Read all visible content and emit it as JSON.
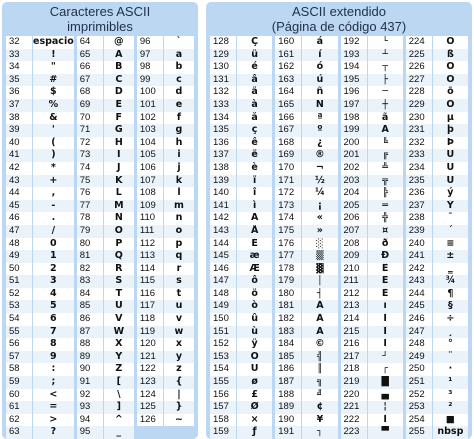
{
  "left_title": [
    "Caracteres ASCII",
    "imprimibles"
  ],
  "right_title": [
    "ASCII extendido",
    "(Página de código 437)"
  ],
  "left_cols": [
    [
      [
        "32",
        "espacio"
      ],
      [
        "33",
        "!"
      ],
      [
        "34",
        "\""
      ],
      [
        "35",
        "#"
      ],
      [
        "36",
        "$"
      ],
      [
        "37",
        "%"
      ],
      [
        "38",
        "&"
      ],
      [
        "39",
        "'"
      ],
      [
        "40",
        "("
      ],
      [
        "41",
        ")"
      ],
      [
        "42",
        "*"
      ],
      [
        "43",
        "+"
      ],
      [
        "44",
        ","
      ],
      [
        "45",
        "-"
      ],
      [
        "46",
        "."
      ],
      [
        "47",
        "/"
      ],
      [
        "48",
        "0"
      ],
      [
        "49",
        "1"
      ],
      [
        "50",
        "2"
      ],
      [
        "51",
        "3"
      ],
      [
        "52",
        "4"
      ],
      [
        "53",
        "5"
      ],
      [
        "54",
        "6"
      ],
      [
        "55",
        "7"
      ],
      [
        "56",
        "8"
      ],
      [
        "57",
        "9"
      ],
      [
        "58",
        ":"
      ],
      [
        "59",
        ";"
      ],
      [
        "60",
        "<"
      ],
      [
        "61",
        "="
      ],
      [
        "62",
        ">"
      ],
      [
        "63",
        "?"
      ]
    ],
    [
      [
        "64",
        "@"
      ],
      [
        "65",
        "A"
      ],
      [
        "66",
        "B"
      ],
      [
        "67",
        "C"
      ],
      [
        "68",
        "D"
      ],
      [
        "69",
        "E"
      ],
      [
        "70",
        "F"
      ],
      [
        "71",
        "G"
      ],
      [
        "72",
        "H"
      ],
      [
        "73",
        "I"
      ],
      [
        "74",
        "J"
      ],
      [
        "75",
        "K"
      ],
      [
        "76",
        "L"
      ],
      [
        "77",
        "M"
      ],
      [
        "78",
        "N"
      ],
      [
        "79",
        "O"
      ],
      [
        "80",
        "P"
      ],
      [
        "81",
        "Q"
      ],
      [
        "82",
        "R"
      ],
      [
        "83",
        "S"
      ],
      [
        "84",
        "T"
      ],
      [
        "85",
        "U"
      ],
      [
        "86",
        "V"
      ],
      [
        "87",
        "W"
      ],
      [
        "88",
        "X"
      ],
      [
        "89",
        "Y"
      ],
      [
        "90",
        "Z"
      ],
      [
        "91",
        "["
      ],
      [
        "92",
        "\\"
      ],
      [
        "93",
        "]"
      ],
      [
        "94",
        "^"
      ],
      [
        "95",
        "_"
      ]
    ],
    [
      [
        "96",
        "`"
      ],
      [
        "97",
        "a"
      ],
      [
        "98",
        "b"
      ],
      [
        "99",
        "c"
      ],
      [
        "100",
        "d"
      ],
      [
        "101",
        "e"
      ],
      [
        "102",
        "f"
      ],
      [
        "103",
        "g"
      ],
      [
        "104",
        "h"
      ],
      [
        "105",
        "i"
      ],
      [
        "106",
        "j"
      ],
      [
        "107",
        "k"
      ],
      [
        "108",
        "l"
      ],
      [
        "109",
        "m"
      ],
      [
        "110",
        "n"
      ],
      [
        "111",
        "o"
      ],
      [
        "112",
        "p"
      ],
      [
        "113",
        "q"
      ],
      [
        "114",
        "r"
      ],
      [
        "115",
        "s"
      ],
      [
        "116",
        "t"
      ],
      [
        "117",
        "u"
      ],
      [
        "118",
        "v"
      ],
      [
        "119",
        "w"
      ],
      [
        "120",
        "x"
      ],
      [
        "121",
        "y"
      ],
      [
        "122",
        "z"
      ],
      [
        "123",
        "{"
      ],
      [
        "124",
        "|"
      ],
      [
        "125",
        "}"
      ],
      [
        "126",
        "~"
      ]
    ]
  ],
  "right_cols": [
    [
      [
        "128",
        "Ç"
      ],
      [
        "129",
        "ü"
      ],
      [
        "130",
        "é"
      ],
      [
        "131",
        "â"
      ],
      [
        "132",
        "ä"
      ],
      [
        "133",
        "à"
      ],
      [
        "134",
        "å"
      ],
      [
        "135",
        "ç"
      ],
      [
        "136",
        "ê"
      ],
      [
        "137",
        "ë"
      ],
      [
        "138",
        "è"
      ],
      [
        "139",
        "ï"
      ],
      [
        "140",
        "î"
      ],
      [
        "141",
        "ì"
      ],
      [
        "142",
        "Ä"
      ],
      [
        "143",
        "Å"
      ],
      [
        "144",
        "É"
      ],
      [
        "145",
        "æ"
      ],
      [
        "146",
        "Æ"
      ],
      [
        "147",
        "ô"
      ],
      [
        "148",
        "ö"
      ],
      [
        "149",
        "ò"
      ],
      [
        "150",
        "û"
      ],
      [
        "151",
        "ù"
      ],
      [
        "152",
        "ÿ"
      ],
      [
        "153",
        "Ö"
      ],
      [
        "154",
        "Ü"
      ],
      [
        "155",
        "ø"
      ],
      [
        "156",
        "£"
      ],
      [
        "157",
        "Ø"
      ],
      [
        "158",
        "×"
      ],
      [
        "159",
        "ƒ"
      ]
    ],
    [
      [
        "160",
        "á"
      ],
      [
        "161",
        "í"
      ],
      [
        "162",
        "ó"
      ],
      [
        "163",
        "ú"
      ],
      [
        "164",
        "ñ"
      ],
      [
        "165",
        "Ñ"
      ],
      [
        "166",
        "ª"
      ],
      [
        "167",
        "º"
      ],
      [
        "168",
        "¿"
      ],
      [
        "169",
        "®"
      ],
      [
        "170",
        "¬"
      ],
      [
        "171",
        "½"
      ],
      [
        "172",
        "¼"
      ],
      [
        "173",
        "¡"
      ],
      [
        "174",
        "«"
      ],
      [
        "175",
        "»"
      ],
      [
        "176",
        "░"
      ],
      [
        "177",
        "▒"
      ],
      [
        "178",
        "▓"
      ],
      [
        "179",
        "│"
      ],
      [
        "180",
        "┤"
      ],
      [
        "181",
        "Á"
      ],
      [
        "182",
        "Â"
      ],
      [
        "183",
        "À"
      ],
      [
        "184",
        "©"
      ],
      [
        "185",
        "╣"
      ],
      [
        "186",
        "║"
      ],
      [
        "187",
        "╗"
      ],
      [
        "188",
        "╝"
      ],
      [
        "189",
        "¢"
      ],
      [
        "190",
        "¥"
      ],
      [
        "191",
        "┐"
      ]
    ],
    [
      [
        "192",
        "└"
      ],
      [
        "193",
        "┴"
      ],
      [
        "194",
        "┬"
      ],
      [
        "195",
        "├"
      ],
      [
        "196",
        "─"
      ],
      [
        "197",
        "┼"
      ],
      [
        "198",
        "ã"
      ],
      [
        "199",
        "Ã"
      ],
      [
        "200",
        "╚"
      ],
      [
        "201",
        "╔"
      ],
      [
        "202",
        "╩"
      ],
      [
        "203",
        "╦"
      ],
      [
        "204",
        "╠"
      ],
      [
        "205",
        "═"
      ],
      [
        "206",
        "╬"
      ],
      [
        "207",
        "¤"
      ],
      [
        "208",
        "ð"
      ],
      [
        "209",
        "Ð"
      ],
      [
        "210",
        "Ê"
      ],
      [
        "211",
        "Ë"
      ],
      [
        "212",
        "È"
      ],
      [
        "213",
        "ı"
      ],
      [
        "214",
        "Í"
      ],
      [
        "215",
        "Î"
      ],
      [
        "216",
        "Ï"
      ],
      [
        "217",
        "┘"
      ],
      [
        "218",
        "┌"
      ],
      [
        "219",
        "█"
      ],
      [
        "220",
        "▄"
      ],
      [
        "221",
        "¦"
      ],
      [
        "222",
        "Ì"
      ],
      [
        "223",
        "▀"
      ]
    ],
    [
      [
        "224",
        "Ó"
      ],
      [
        "225",
        "ß"
      ],
      [
        "226",
        "Ô"
      ],
      [
        "227",
        "Ò"
      ],
      [
        "228",
        "õ"
      ],
      [
        "229",
        "Õ"
      ],
      [
        "230",
        "µ"
      ],
      [
        "231",
        "þ"
      ],
      [
        "232",
        "Þ"
      ],
      [
        "233",
        "Ú"
      ],
      [
        "234",
        "Û"
      ],
      [
        "235",
        "Ù"
      ],
      [
        "236",
        "ý"
      ],
      [
        "237",
        "Ý"
      ],
      [
        "238",
        "¯"
      ],
      [
        "239",
        "´"
      ],
      [
        "240",
        "≡"
      ],
      [
        "241",
        "±"
      ],
      [
        "242",
        "‗"
      ],
      [
        "243",
        "¾"
      ],
      [
        "244",
        "¶"
      ],
      [
        "245",
        "§"
      ],
      [
        "246",
        "÷"
      ],
      [
        "247",
        "¸"
      ],
      [
        "248",
        "°"
      ],
      [
        "249",
        "¨"
      ],
      [
        "250",
        "·"
      ],
      [
        "251",
        "¹"
      ],
      [
        "252",
        "³"
      ],
      [
        "253",
        "²"
      ],
      [
        "254",
        "■"
      ],
      [
        "255",
        "nbsp"
      ]
    ]
  ]
}
